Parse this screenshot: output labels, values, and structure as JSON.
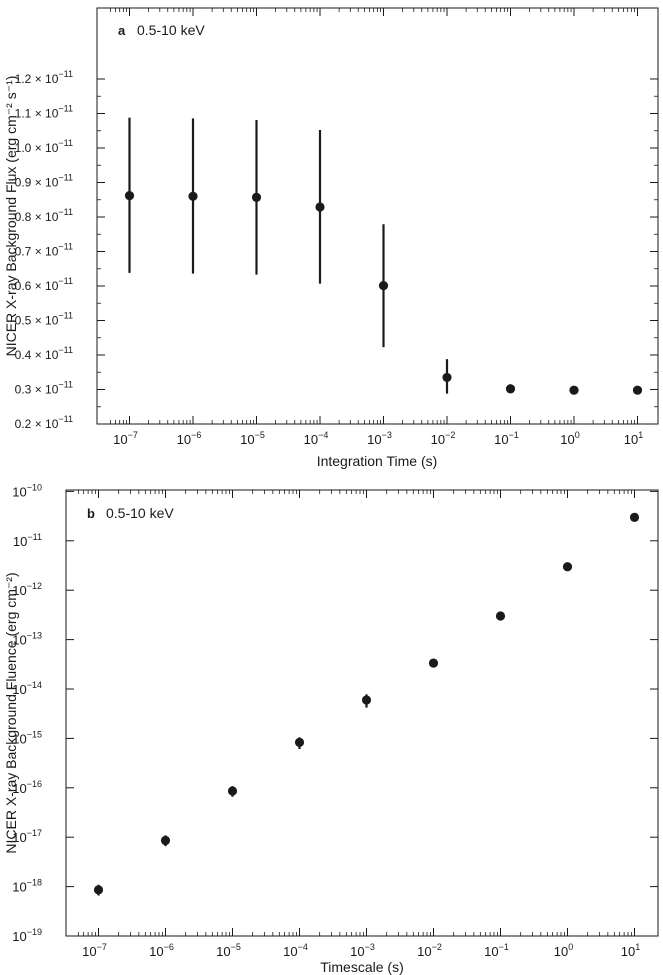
{
  "chart_data": [
    {
      "panel": "a",
      "type": "scatter",
      "annotation": "0.5-10 keV",
      "xlabel": "Integration Time (s)",
      "ylabel": "NICER X-ray Background Flux (erg cm⁻² s⁻¹)",
      "x_scale": "log",
      "y_scale": "linear",
      "y_exponent": -11,
      "xlim": [
        1e-07,
        10
      ],
      "ylim": [
        2e-12,
        1.2e-11
      ],
      "x_ticks": [
        -7,
        -6,
        -5,
        -4,
        -3,
        -2,
        -1,
        0,
        1
      ],
      "y_ticks": [
        0.2,
        0.3,
        0.4,
        0.5,
        0.6,
        0.7,
        0.8,
        0.9,
        1.0,
        1.1,
        1.2
      ],
      "points": [
        {
          "x": 1e-07,
          "y": 8.62e-12,
          "yerr_low": 6.38e-12,
          "yerr_high": 1.088e-11
        },
        {
          "x": 1e-06,
          "y": 8.6e-12,
          "yerr_low": 6.36e-12,
          "yerr_high": 1.086e-11
        },
        {
          "x": 1e-05,
          "y": 8.57e-12,
          "yerr_low": 6.33e-12,
          "yerr_high": 1.081e-11
        },
        {
          "x": 0.0001,
          "y": 8.29e-12,
          "yerr_low": 6.07e-12,
          "yerr_high": 1.052e-11
        },
        {
          "x": 0.001,
          "y": 6.01e-12,
          "yerr_low": 4.23e-12,
          "yerr_high": 7.79e-12
        },
        {
          "x": 0.01,
          "y": 3.35e-12,
          "yerr_low": 2.88e-12,
          "yerr_high": 3.88e-12
        },
        {
          "x": 0.1,
          "y": 3.02e-12,
          "yerr_low": 2.89e-12,
          "yerr_high": 3.15e-12
        },
        {
          "x": 1,
          "y": 2.98e-12,
          "yerr_low": 2.95e-12,
          "yerr_high": 3.01e-12
        },
        {
          "x": 10,
          "y": 2.98e-12,
          "yerr_low": 2.97e-12,
          "yerr_high": 2.99e-12
        }
      ]
    },
    {
      "panel": "b",
      "type": "scatter",
      "annotation": "0.5-10 keV",
      "xlabel": "Timescale (s)",
      "ylabel": "NICER X-ray Background Fluence (erg cm⁻²)",
      "x_scale": "log",
      "y_scale": "log",
      "xlim": [
        1e-07,
        10
      ],
      "ylim": [
        1e-19,
        1e-10
      ],
      "x_ticks": [
        -7,
        -6,
        -5,
        -4,
        -3,
        -2,
        -1,
        0,
        1
      ],
      "y_ticks": [
        -19,
        -18,
        -17,
        -16,
        -15,
        -14,
        -13,
        -12,
        -11,
        -10
      ],
      "points": [
        {
          "x": 1e-07,
          "y": 8.6e-19,
          "yerr_low": 6.6e-19,
          "yerr_high": 1.09e-18
        },
        {
          "x": 1e-06,
          "y": 8.6e-18,
          "yerr_low": 6.6e-18,
          "yerr_high": 1.09e-17
        },
        {
          "x": 1e-05,
          "y": 8.6e-17,
          "yerr_low": 6.6e-17,
          "yerr_high": 1.08e-16
        },
        {
          "x": 0.0001,
          "y": 8.3e-16,
          "yerr_low": 6.1e-16,
          "yerr_high": 1.05e-15
        },
        {
          "x": 0.001,
          "y": 6e-15,
          "yerr_low": 4.2e-15,
          "yerr_high": 7.8e-15
        },
        {
          "x": 0.01,
          "y": 3.35e-14,
          "yerr_low": 2.9e-14,
          "yerr_high": 3.9e-14
        },
        {
          "x": 0.1,
          "y": 3e-13,
          "yerr_low": 2.9e-13,
          "yerr_high": 3.15e-13
        },
        {
          "x": 1,
          "y": 2.98e-12,
          "yerr_low": 2.95e-12,
          "yerr_high": 3.01e-12
        },
        {
          "x": 10,
          "y": 2.98e-11,
          "yerr_low": 2.97e-11,
          "yerr_high": 2.99e-11
        }
      ]
    }
  ]
}
